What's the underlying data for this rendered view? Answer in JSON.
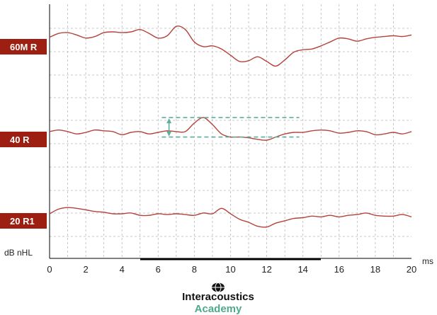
{
  "chart_data": {
    "type": "line",
    "xlabel": "ms",
    "ylabel": "dB nHL",
    "xlim": [
      0,
      20
    ],
    "x_ticks": [
      "0",
      "2",
      "4",
      "6",
      "8",
      "10",
      "12",
      "14",
      "16",
      "18",
      "20"
    ],
    "grid": true,
    "series": [
      {
        "name": "60M R",
        "x": [
          0,
          0.5,
          1,
          1.5,
          2,
          2.5,
          3,
          3.5,
          4,
          4.5,
          5,
          5.5,
          6,
          6.5,
          7,
          7.5,
          8,
          8.5,
          9,
          9.5,
          10,
          10.5,
          11,
          11.5,
          12,
          12.5,
          13,
          13.5,
          14,
          14.5,
          15,
          15.5,
          16,
          16.5,
          17,
          17.5,
          18,
          18.5,
          19,
          19.5,
          20
        ],
        "y": [
          0.3,
          0.8,
          0.9,
          0.6,
          0.2,
          0.4,
          0.9,
          1.0,
          0.9,
          1.0,
          1.3,
          0.8,
          0.2,
          0.5,
          1.7,
          1.3,
          -0.3,
          -0.9,
          -0.8,
          -1.2,
          -2.0,
          -2.8,
          -2.7,
          -2.2,
          -2.8,
          -3.4,
          -2.6,
          -1.6,
          -1.3,
          -1.2,
          -0.8,
          -0.3,
          0.2,
          0.1,
          -0.2,
          0.1,
          0.3,
          0.4,
          0.5,
          0.4,
          0.6
        ]
      },
      {
        "name": "40 R",
        "x": [
          0,
          0.5,
          1,
          1.5,
          2,
          2.5,
          3,
          3.5,
          4,
          4.5,
          5,
          5.5,
          6,
          6.5,
          7,
          7.5,
          8,
          8.5,
          9,
          9.5,
          10,
          10.5,
          11,
          11.5,
          12,
          12.5,
          13,
          13.5,
          14,
          14.5,
          15,
          15.5,
          16,
          16.5,
          17,
          17.5,
          18,
          18.5,
          19,
          19.5,
          20
        ],
        "y": [
          0.1,
          0.3,
          0.1,
          -0.2,
          0.0,
          0.3,
          0.2,
          0.1,
          -0.3,
          0.0,
          0.1,
          -0.2,
          0.0,
          0.2,
          0.1,
          0.1,
          1.2,
          1.9,
          1.0,
          -0.2,
          -0.6,
          -0.6,
          -0.7,
          -0.9,
          -1.0,
          -0.6,
          -0.2,
          0.0,
          0.0,
          0.2,
          0.3,
          0.2,
          -0.1,
          0.0,
          0.2,
          0.1,
          -0.3,
          -0.2,
          0.0,
          -0.2,
          0.1
        ]
      },
      {
        "name": "20 R1",
        "x": [
          0,
          0.5,
          1,
          1.5,
          2,
          2.5,
          3,
          3.5,
          4,
          4.5,
          5,
          5.5,
          6,
          6.5,
          7,
          7.5,
          8,
          8.5,
          9,
          9.5,
          10,
          10.5,
          11,
          11.5,
          12,
          12.5,
          13,
          13.5,
          14,
          14.5,
          15,
          15.5,
          16,
          16.5,
          17,
          17.5,
          18,
          18.5,
          19,
          19.5,
          20
        ],
        "y": [
          0.0,
          0.6,
          0.8,
          0.7,
          0.5,
          0.3,
          0.2,
          0.0,
          0.0,
          0.1,
          -0.2,
          -0.2,
          0.0,
          -0.1,
          0.0,
          -0.1,
          -0.2,
          0.1,
          0.0,
          0.7,
          0.0,
          -0.7,
          -1.1,
          -1.6,
          -1.7,
          -1.2,
          -0.9,
          -0.6,
          -0.5,
          -0.3,
          -0.4,
          -0.2,
          -0.4,
          -0.2,
          -0.1,
          0.1,
          -0.2,
          -0.3,
          -0.3,
          -0.1,
          -0.4
        ]
      }
    ],
    "annotation": {
      "type": "amplitude-marker",
      "series": "40 R",
      "x": [
        6.2,
        13.8
      ],
      "peak_x": 8.7,
      "trough_x": 12.3
    }
  },
  "colors": {
    "trace": "#b5423a",
    "label_bg": "#9c1f12",
    "grid": "#b8b8b8",
    "axis": "#000000",
    "marker": "#5fae9d",
    "logo_dark": "#111111",
    "logo_teal": "#4fa98c"
  },
  "logo": {
    "brand": "Interacoustics",
    "sub": "Academy"
  }
}
